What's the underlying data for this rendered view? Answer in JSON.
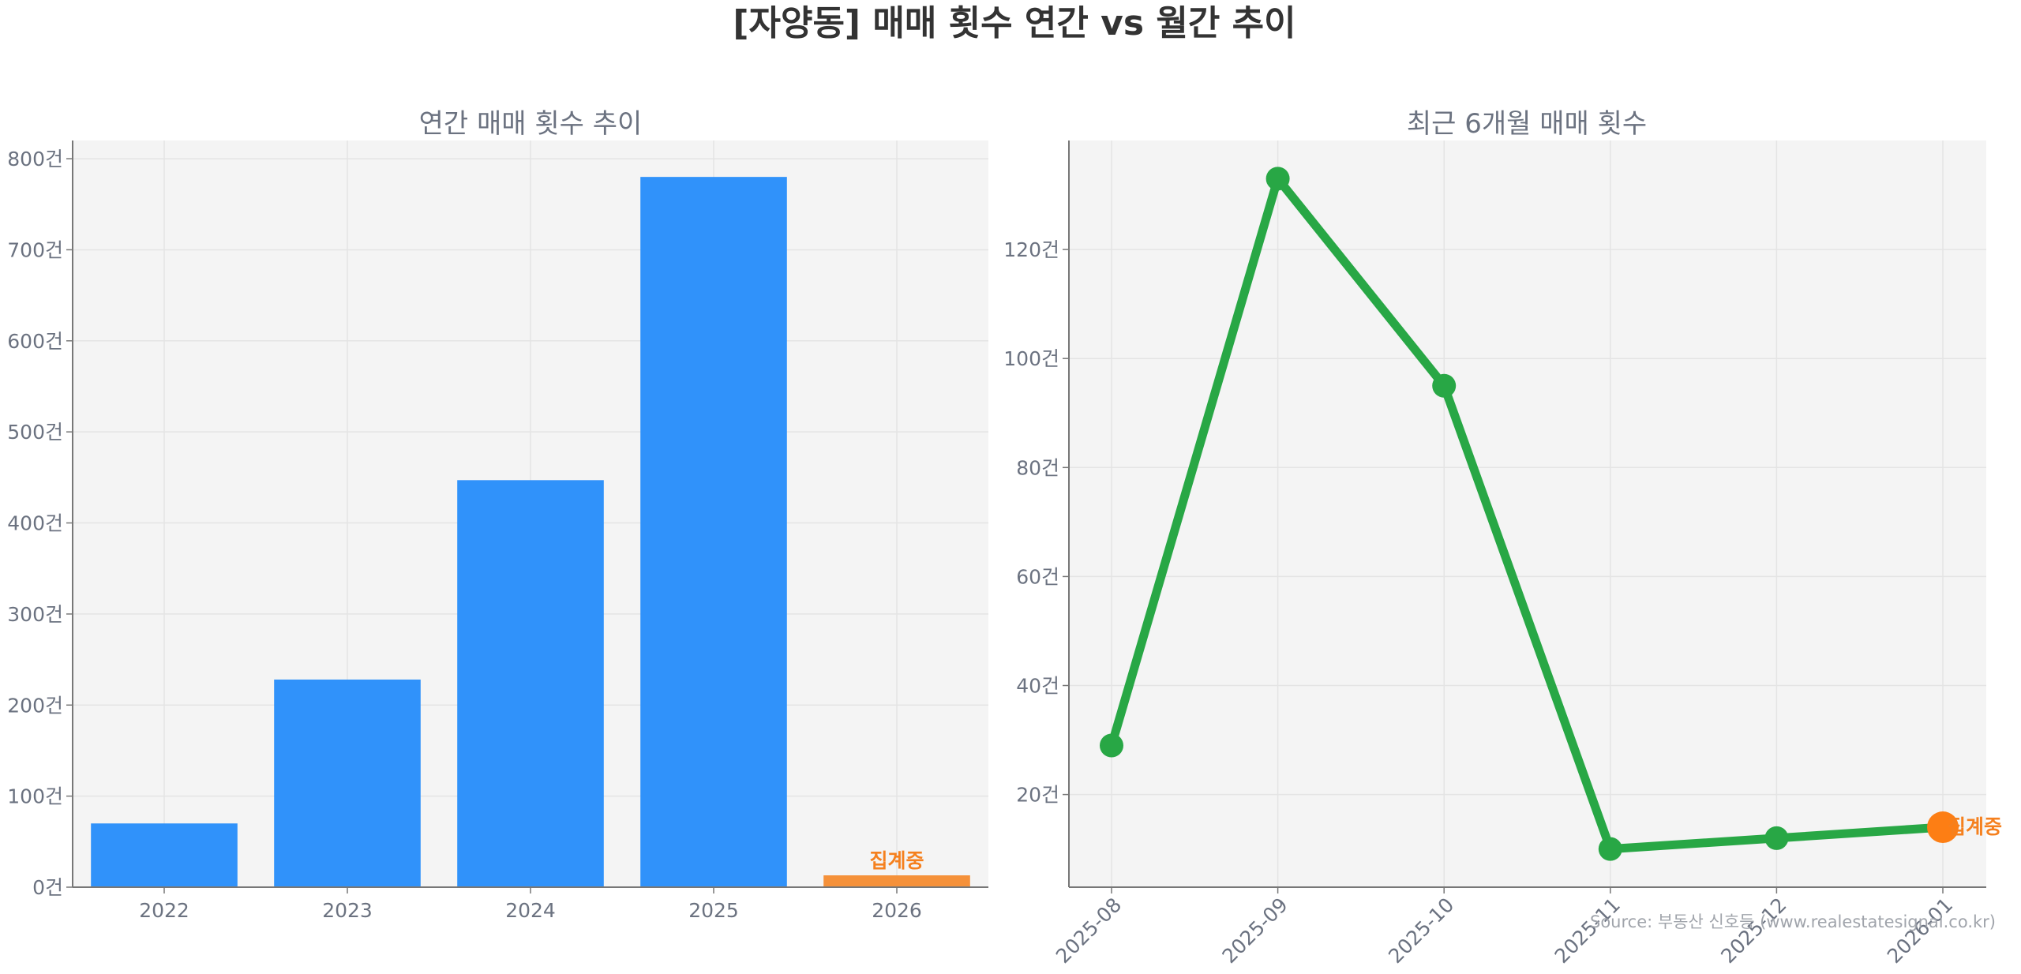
{
  "title": "[자양동] 매매 횟수 연간 vs 월간 추이",
  "colors": {
    "bar": "#3092fa",
    "bar_pending": "#f5913a",
    "line": "#28a745",
    "point_pending": "#fd7e14",
    "pending_text": "#f5801e",
    "panel_bg": "#f4f4f4",
    "grid": "#e4e4e4",
    "axis": "#777777",
    "tick_text": "#6b7280"
  },
  "source": "Source: 부동산 신호등 (www.realestatesignal.co.kr)",
  "chart_data": [
    {
      "type": "bar",
      "title": "연간 매매 횟수 추이",
      "categories": [
        "2022",
        "2023",
        "2024",
        "2025",
        "2026"
      ],
      "values": [
        70,
        228,
        447,
        780,
        13
      ],
      "ylim": [
        0,
        820
      ],
      "yticks": [
        0,
        100,
        200,
        300,
        400,
        500,
        600,
        700,
        800
      ],
      "ytick_labels": [
        "0건",
        "100건",
        "200건",
        "300건",
        "400건",
        "500건",
        "600건",
        "700건",
        "800건"
      ],
      "grid": true,
      "pending_index": 4,
      "pending_label": "집계중"
    },
    {
      "type": "line",
      "title": "최근 6개월 매매 횟수",
      "x": [
        "2025-08",
        "2025-09",
        "2025-10",
        "2025-11",
        "2025-12",
        "2026-01"
      ],
      "values": [
        29,
        133,
        95,
        10,
        12,
        14
      ],
      "ylim": [
        3,
        140
      ],
      "yticks": [
        20,
        40,
        60,
        80,
        100,
        120
      ],
      "ytick_labels": [
        "20건",
        "40건",
        "60건",
        "80건",
        "100건",
        "120건"
      ],
      "grid": true,
      "pending_index": 5,
      "pending_label": "집계중"
    }
  ]
}
